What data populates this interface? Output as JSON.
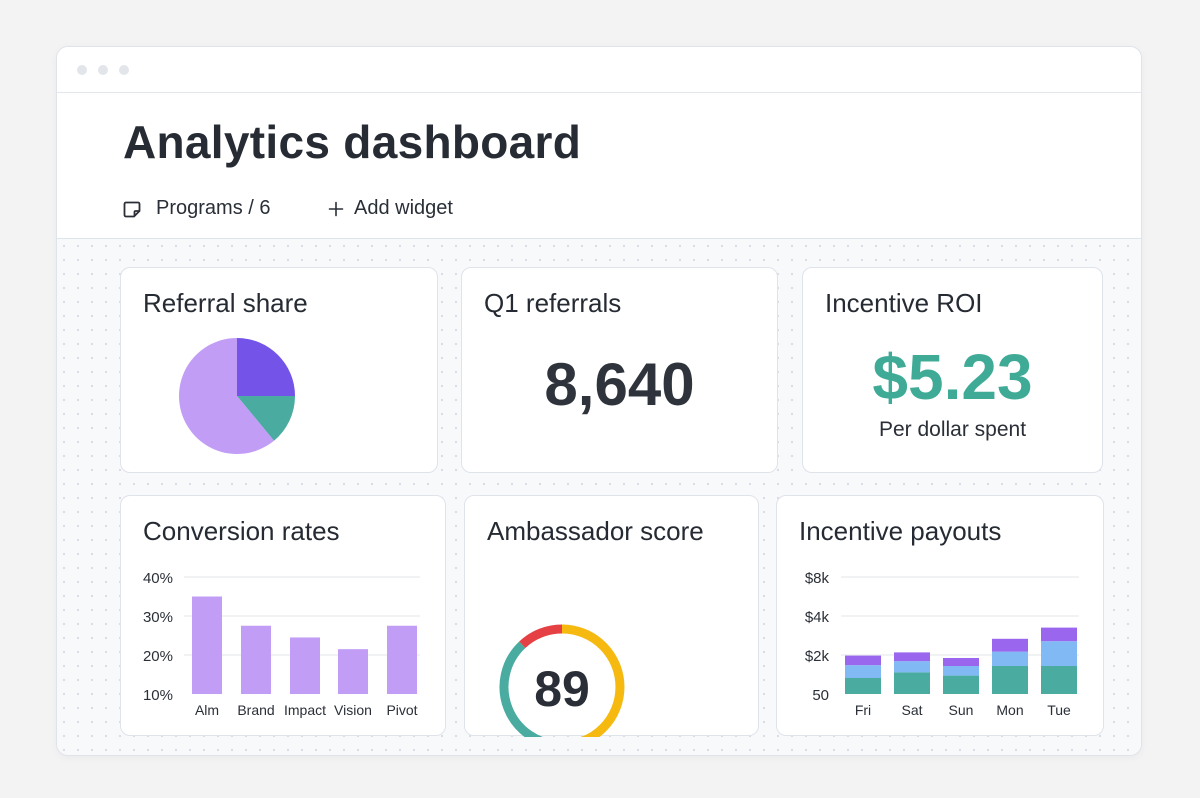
{
  "page": {
    "title": "Analytics dashboard"
  },
  "toolbar": {
    "programs_label": "Programs / 6",
    "add_widget_label": "Add widget"
  },
  "colors": {
    "purple_light": "#c29df6",
    "purple_dark": "#7353e8",
    "teal": "#4aaba0",
    "blue_light": "#80b9f3",
    "violet": "#9a66ee",
    "yellow": "#f5b90f",
    "red": "#e54043",
    "roi_green": "#3fab97"
  },
  "referral_share": {
    "title": "Referral share"
  },
  "q1_referrals": {
    "title": "Q1 referrals",
    "value": "8,640"
  },
  "incentive_roi": {
    "title": "Incentive ROI",
    "value": "$5.23",
    "subtitle": "Per dollar spent"
  },
  "conversion_rates": {
    "title": "Conversion rates"
  },
  "ambassador_score": {
    "title": "Ambassador score",
    "value": "89"
  },
  "incentive_payouts": {
    "title": "Incentive payouts"
  },
  "chart_data": [
    {
      "type": "pie",
      "title": "Referral share",
      "slices": [
        {
          "value": 25,
          "color": "#7353e8"
        },
        {
          "value": 14,
          "color": "#4aaba0"
        },
        {
          "value": 61,
          "color": "#c29df6"
        }
      ]
    },
    {
      "type": "bar",
      "title": "Conversion rates",
      "categories": [
        "Alm",
        "Brand",
        "Impact",
        "Vision",
        "Pivot"
      ],
      "values": [
        35,
        27.5,
        24.5,
        21.5,
        27.5
      ],
      "yticks": [
        "40%",
        "30%",
        "20%",
        "10%"
      ],
      "ylim": [
        10,
        40
      ],
      "color": "#c29df6",
      "grid": true
    },
    {
      "type": "gauge",
      "title": "Ambassador score",
      "value": 89,
      "segments": [
        {
          "value": 0.5,
          "color": "#f5b90f"
        },
        {
          "value": 0.38,
          "color": "#4aaba0"
        },
        {
          "value": 0.12,
          "color": "#e54043"
        }
      ]
    },
    {
      "type": "bar",
      "stacked": true,
      "title": "Incentive payouts",
      "categories": [
        "Fri",
        "Sat",
        "Sun",
        "Mon",
        "Tue"
      ],
      "yticks": [
        "$8k",
        "$4k",
        "$2k",
        "50"
      ],
      "series": [
        {
          "color": "#4aaba0",
          "values": [
            1,
            1.35,
            1.15,
            1.75,
            1.75
          ]
        },
        {
          "color": "#80b9f3",
          "values": [
            0.8,
            0.7,
            0.6,
            0.9,
            1.55
          ]
        },
        {
          "color": "#9a66ee",
          "values": [
            0.6,
            0.55,
            0.5,
            0.8,
            0.85
          ]
        }
      ],
      "grid": true
    }
  ]
}
